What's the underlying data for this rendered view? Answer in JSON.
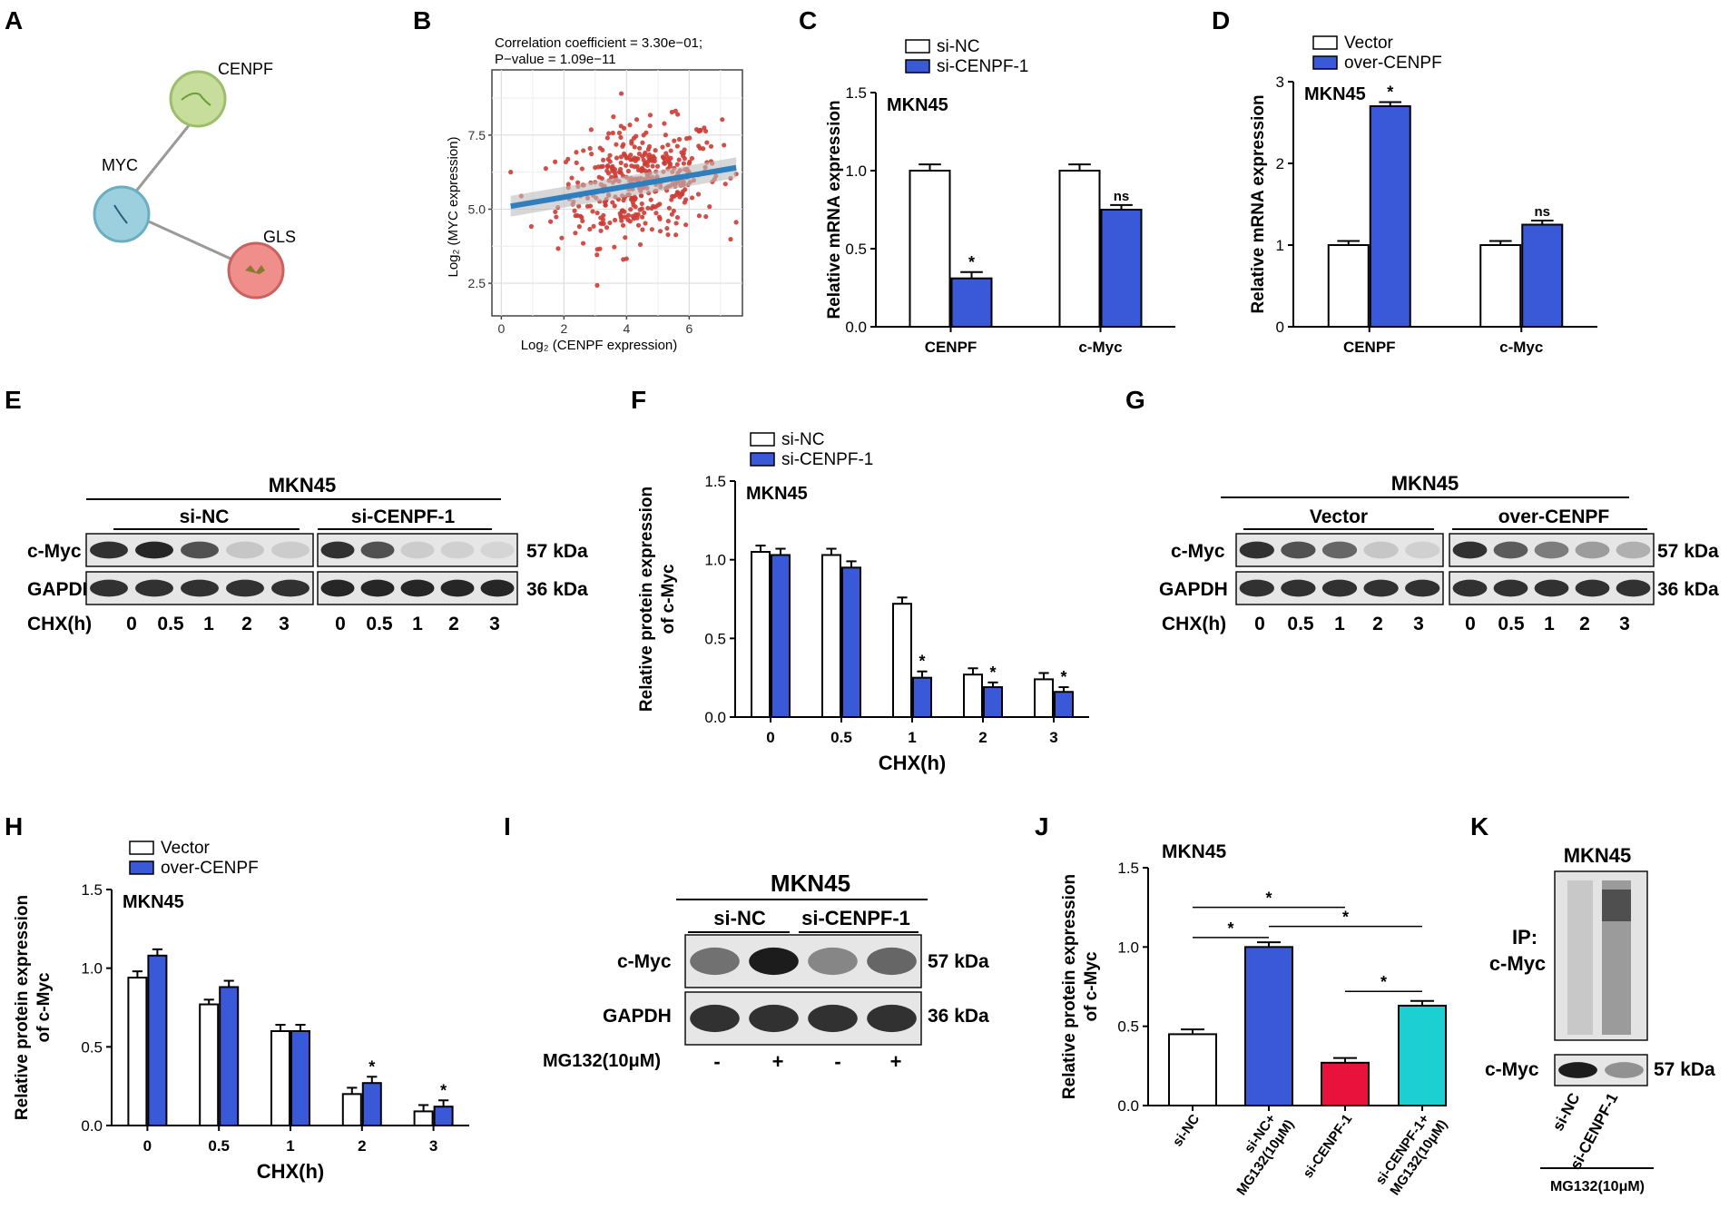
{
  "colors": {
    "blue": "#3a59d8",
    "red": "#e8123c",
    "cyan": "#1ccfd1",
    "scatter": "#cc3c34",
    "fitline": "#2f7fbf",
    "band": "#c8c8c8",
    "cenpf_node": "#c7dd9c",
    "myc_node": "#9dd0de",
    "gls_node": "#ef8e8a"
  },
  "panels": {
    "A": {
      "label": "A",
      "nodes": [
        "CENPF",
        "MYC",
        "GLS"
      ]
    },
    "B": {
      "label": "B",
      "title1": "Correlation coefficient = 3.30e−01;",
      "title2": "P−value = 1.09e−11",
      "xlabel": "Log₂ (CENPF expression)",
      "ylabel": "Log₂ (MYC expression)",
      "xticks": [
        "0",
        "2",
        "4",
        "6"
      ],
      "yticks": [
        "2.5",
        "5.0",
        "7.5"
      ]
    },
    "C": {
      "label": "C"
    },
    "D": {
      "label": "D"
    },
    "E": {
      "label": "E",
      "title": "MKN45",
      "groups": [
        "si-NC",
        "si-CENPF-1"
      ],
      "rows": [
        "c-Myc",
        "GAPDH"
      ],
      "kda": [
        "57 kDa",
        "36 kDa"
      ],
      "chx_label": "CHX(h)",
      "lanes": [
        "0",
        "0.5",
        "1",
        "2",
        "3",
        "0",
        "0.5",
        "1",
        "2",
        "3"
      ]
    },
    "F": {
      "label": "F"
    },
    "G": {
      "label": "G",
      "title": "MKN45",
      "groups": [
        "Vector",
        "over-CENPF"
      ],
      "rows": [
        "c-Myc",
        "GAPDH"
      ],
      "kda": [
        "57 kDa",
        "36 kDa"
      ],
      "chx_label": "CHX(h)",
      "lanes": [
        "0",
        "0.5",
        "1",
        "2",
        "3",
        "0",
        "0.5",
        "1",
        "2",
        "3"
      ]
    },
    "H": {
      "label": "H"
    },
    "I": {
      "label": "I",
      "title": "MKN45",
      "groups": [
        "si-NC",
        "si-CENPF-1"
      ],
      "rows": [
        "c-Myc",
        "GAPDH"
      ],
      "kda": [
        "57 kDa",
        "36 kDa"
      ],
      "treat_label": "MG132(10μM)",
      "signs": [
        "-",
        "+",
        "-",
        "+"
      ]
    },
    "J": {
      "label": "J"
    },
    "K": {
      "label": "K",
      "title": "MKN45",
      "ip": "IP:",
      "ip2": "c-Myc",
      "row": "c-Myc",
      "kda": "57 kDa",
      "lanes": [
        "si-NC",
        "si-CENPF-1"
      ],
      "treat": "MG132(10μM)"
    }
  },
  "chart_data": [
    {
      "id": "B",
      "type": "scatter",
      "title": "Correlation coefficient = 3.30e−01; P−value = 1.09e−11",
      "xlabel": "Log2 (CENPF expression)",
      "ylabel": "Log2 (MYC expression)",
      "xlim": [
        -0.3,
        7.7
      ],
      "ylim": [
        1.4,
        9.7
      ],
      "fit": {
        "x0": 0.3,
        "y0": 5.1,
        "x1": 7.5,
        "y1": 6.4
      },
      "n_points": 420,
      "x_center": 4.4,
      "y_center": 5.9
    },
    {
      "id": "C",
      "type": "bar",
      "title": "MKN45",
      "ylabel": "Relative mRNA expression",
      "categories": [
        "CENPF",
        "c-Myc"
      ],
      "ylim": [
        0,
        1.5
      ],
      "yticks": [
        "0.0",
        "0.5",
        "1.0",
        "1.5"
      ],
      "series": [
        {
          "name": "si-NC",
          "color": "#ffffff",
          "values": [
            1.0,
            1.0
          ],
          "errors": [
            0.04,
            0.04
          ],
          "sig": [
            "",
            ""
          ]
        },
        {
          "name": "si-CENPF-1",
          "color": "#3a59d8",
          "values": [
            0.31,
            0.75
          ],
          "errors": [
            0.04,
            0.03
          ],
          "sig": [
            "*",
            "ns"
          ]
        }
      ]
    },
    {
      "id": "D",
      "type": "bar",
      "title": "MKN45",
      "ylabel": "Relative mRNA expression",
      "categories": [
        "CENPF",
        "c-Myc"
      ],
      "ylim": [
        0,
        3
      ],
      "yticks": [
        "0",
        "1",
        "2",
        "3"
      ],
      "series": [
        {
          "name": "Vector",
          "color": "#ffffff",
          "values": [
            1.0,
            1.0
          ],
          "errors": [
            0.05,
            0.05
          ],
          "sig": [
            "",
            ""
          ]
        },
        {
          "name": "over-CENPF",
          "color": "#3a59d8",
          "values": [
            2.7,
            1.25
          ],
          "errors": [
            0.05,
            0.05
          ],
          "sig": [
            "*",
            "ns"
          ]
        }
      ]
    },
    {
      "id": "F",
      "type": "bar",
      "title": "MKN45",
      "ylabel": "Relative protein expression\nof c-Myc",
      "xlabel": "CHX(h)",
      "categories": [
        "0",
        "0.5",
        "1",
        "2",
        "3"
      ],
      "ylim": [
        0,
        1.5
      ],
      "yticks": [
        "0.0",
        "0.5",
        "1.0",
        "1.5"
      ],
      "series": [
        {
          "name": "si-NC",
          "color": "#ffffff",
          "values": [
            1.05,
            1.03,
            0.72,
            0.27,
            0.24
          ],
          "errors": [
            0.04,
            0.04,
            0.04,
            0.04,
            0.04
          ],
          "sig": [
            "",
            "",
            "",
            "",
            ""
          ]
        },
        {
          "name": "si-CENPF-1",
          "color": "#3a59d8",
          "values": [
            1.03,
            0.95,
            0.25,
            0.19,
            0.16
          ],
          "errors": [
            0.04,
            0.04,
            0.04,
            0.03,
            0.03
          ],
          "sig": [
            "",
            "",
            "*",
            "*",
            "*"
          ]
        }
      ]
    },
    {
      "id": "H",
      "type": "bar",
      "title": "MKN45",
      "ylabel": "Relative protein expression\nof c-Myc",
      "xlabel": "CHX(h)",
      "categories": [
        "0",
        "0.5",
        "1",
        "2",
        "3"
      ],
      "ylim": [
        0,
        1.5
      ],
      "yticks": [
        "0.0",
        "0.5",
        "1.0",
        "1.5"
      ],
      "series": [
        {
          "name": "Vector",
          "color": "#ffffff",
          "values": [
            0.94,
            0.77,
            0.6,
            0.2,
            0.09
          ],
          "errors": [
            0.04,
            0.03,
            0.04,
            0.04,
            0.04
          ],
          "sig": [
            "",
            "",
            "",
            "",
            ""
          ]
        },
        {
          "name": "over-CENPF",
          "color": "#3a59d8",
          "values": [
            1.08,
            0.88,
            0.6,
            0.27,
            0.12
          ],
          "errors": [
            0.04,
            0.04,
            0.04,
            0.04,
            0.04
          ],
          "sig": [
            "",
            "",
            "",
            "*",
            "*"
          ]
        }
      ]
    },
    {
      "id": "J",
      "type": "bar",
      "title": "MKN45",
      "ylabel": "Relative protein expression\nof c-Myc",
      "categories": [
        "si-NC",
        "si-NC+\nMG132(10μM)",
        "si-CENPF-1",
        "si-CENPF-1+\nMG132(10μM)"
      ],
      "ylim": [
        0,
        1.5
      ],
      "yticks": [
        "0.0",
        "0.5",
        "1.0",
        "1.5"
      ],
      "values": [
        0.45,
        1.0,
        0.27,
        0.63
      ],
      "errors": [
        0.03,
        0.03,
        0.03,
        0.03
      ],
      "colors": [
        "#ffffff",
        "#3a59d8",
        "#e8123c",
        "#1ccfd1"
      ],
      "brackets": [
        {
          "from": 0,
          "to": 1,
          "level": 1.06,
          "label": "*"
        },
        {
          "from": 2,
          "to": 3,
          "level": 0.72,
          "label": "*"
        },
        {
          "from": 1,
          "to": 3,
          "level": 1.13,
          "label": "*"
        },
        {
          "from": 0,
          "to": 2,
          "level": 1.25,
          "label": "*"
        }
      ]
    }
  ]
}
